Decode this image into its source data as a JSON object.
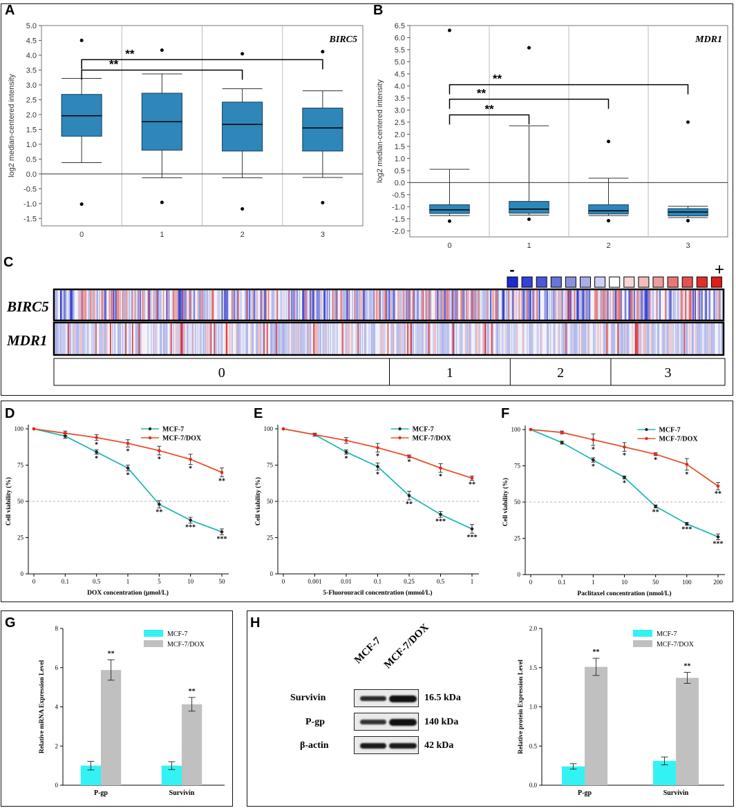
{
  "colors": {
    "box": "#2e86b9",
    "boxEdge": "#173f5c",
    "cyanLine": "#1fb8b0",
    "redLine": "#e8502a",
    "redDot": "#e8231c",
    "mcf7Bar": "#33f2f4",
    "doxBar": "#c0c0c0",
    "heatBlue": "#2233cc",
    "heatRed": "#e3231b"
  },
  "panels": {
    "A": {
      "label": "A"
    },
    "B": {
      "label": "B"
    },
    "C": {
      "label": "C"
    },
    "D": {
      "label": "D"
    },
    "E": {
      "label": "E"
    },
    "F": {
      "label": "F"
    },
    "G": {
      "label": "G"
    },
    "H": {
      "label": "H"
    }
  },
  "chart_data": [
    {
      "id": "A",
      "type": "box",
      "title": "BIRC5",
      "ylabel": "log2 median-centered intensity",
      "ylim": [
        -1.75,
        5.0
      ],
      "yticks": [
        -1.5,
        -1.0,
        -0.5,
        0.0,
        0.5,
        1.0,
        1.5,
        2.0,
        2.5,
        3.0,
        3.5,
        4.0,
        4.5,
        5.0
      ],
      "categories": [
        "0",
        "1",
        "2",
        "3"
      ],
      "boxes": [
        {
          "whiskerLow": 0.38,
          "q1": 1.27,
          "median": 1.96,
          "q3": 2.68,
          "whiskerHigh": 3.22,
          "outliers": [
            4.5,
            -1.02
          ]
        },
        {
          "whiskerLow": -0.13,
          "q1": 0.8,
          "median": 1.76,
          "q3": 2.72,
          "whiskerHigh": 3.37,
          "outliers": [
            4.17,
            -0.96
          ]
        },
        {
          "whiskerLow": -0.13,
          "q1": 0.77,
          "median": 1.67,
          "q3": 2.42,
          "whiskerHigh": 2.87,
          "outliers": [
            4.05,
            -1.18
          ]
        },
        {
          "whiskerLow": -0.12,
          "q1": 0.77,
          "median": 1.55,
          "q3": 2.22,
          "whiskerHigh": 2.8,
          "outliers": [
            4.12,
            -0.97
          ]
        }
      ],
      "brackets": [
        {
          "from": 0,
          "to": 2,
          "y": 3.5,
          "label": "**"
        },
        {
          "from": 0,
          "to": 3,
          "y": 3.85,
          "label": "**"
        }
      ]
    },
    {
      "id": "B",
      "type": "box",
      "title": "MDR1",
      "ylabel": "log2 median-centered intensity",
      "ylim": [
        -2.25,
        6.5
      ],
      "yticks": [
        -2.0,
        -1.5,
        -1.0,
        -0.5,
        0.0,
        0.5,
        1.0,
        1.5,
        2.0,
        2.5,
        3.0,
        3.5,
        4.0,
        4.5,
        5.0,
        5.5,
        6.0,
        6.5
      ],
      "categories": [
        "0",
        "1",
        "2",
        "3"
      ],
      "boxes": [
        {
          "whiskerLow": -1.37,
          "q1": -1.28,
          "median": -1.13,
          "q3": -0.92,
          "whiskerHigh": 0.55,
          "outliers": [
            6.3,
            -1.6
          ]
        },
        {
          "whiskerLow": -1.35,
          "q1": -1.27,
          "median": -1.1,
          "q3": -0.78,
          "whiskerHigh": 2.35,
          "outliers": [
            5.58,
            -1.52
          ]
        },
        {
          "whiskerLow": -1.37,
          "q1": -1.3,
          "median": -1.17,
          "q3": -0.92,
          "whiskerHigh": 0.18,
          "outliers": [
            1.7,
            -1.58
          ]
        },
        {
          "whiskerLow": -1.45,
          "q1": -1.38,
          "median": -1.22,
          "q3": -1.08,
          "whiskerHigh": -0.98,
          "outliers": [
            2.5,
            -1.58
          ]
        }
      ],
      "brackets": [
        {
          "from": 0,
          "to": 1,
          "y": 2.8,
          "label": "**"
        },
        {
          "from": 0,
          "to": 2,
          "y": 3.45,
          "label": "**"
        },
        {
          "from": 0,
          "to": 3,
          "y": 4.05,
          "label": "**"
        }
      ]
    },
    {
      "id": "C",
      "type": "heatmap",
      "rows": [
        "BIRC5",
        "MDR1"
      ],
      "groups": [
        "0",
        "1",
        "2",
        "3"
      ],
      "groupSpan": [
        0.5,
        0.18,
        0.15,
        0.17
      ],
      "legend": {
        "minus": "-",
        "plus": "+"
      }
    },
    {
      "id": "D",
      "type": "line",
      "xlabel": "DOX concentration (μmol/L)",
      "ylabel": "Cell viability (%)",
      "categories": [
        "0",
        "0.1",
        "0.5",
        "1",
        "5",
        "10",
        "50"
      ],
      "yticks": [
        0,
        25,
        50,
        75,
        100
      ],
      "ylim": [
        0,
        100
      ],
      "refline": 50,
      "series": [
        {
          "name": "MCF-7",
          "values": [
            100,
            95,
            84,
            73,
            48,
            37,
            29
          ],
          "errors": [
            0,
            1.5,
            1.5,
            2,
            2.5,
            2,
            2
          ],
          "sig": [
            "",
            "",
            "*",
            "*",
            "**",
            "***",
            "***"
          ]
        },
        {
          "name": "MCF-7/DOX",
          "values": [
            100,
            97,
            94,
            90,
            85,
            79,
            70
          ],
          "errors": [
            0,
            1.5,
            2,
            2.5,
            3,
            3.5,
            3
          ],
          "sig": [
            "",
            "",
            "*",
            "*",
            "*",
            "*",
            "**"
          ]
        }
      ]
    },
    {
      "id": "E",
      "type": "line",
      "xlabel": "5-Fluorouracil concentration (mmol/L)",
      "ylabel": "Cell viability (%)",
      "categories": [
        "0",
        "0.001",
        "0.01",
        "0.1",
        "0.25",
        "0.5",
        "1"
      ],
      "yticks": [
        0,
        25,
        50,
        75,
        100
      ],
      "ylim": [
        0,
        100
      ],
      "refline": 50,
      "series": [
        {
          "name": "MCF-7",
          "values": [
            100,
            96,
            84,
            74,
            54,
            41,
            31
          ],
          "errors": [
            0,
            1,
            1.5,
            2.5,
            3,
            2,
            3
          ],
          "sig": [
            "",
            "",
            "*",
            "*",
            "**",
            "***",
            "***"
          ]
        },
        {
          "name": "MCF-7/DOX",
          "values": [
            100,
            96,
            92,
            87,
            81,
            73,
            66
          ],
          "errors": [
            0,
            1,
            2,
            3,
            1,
            3,
            1.5
          ],
          "sig": [
            "",
            "",
            "",
            "*",
            "*",
            "*",
            "**"
          ]
        }
      ]
    },
    {
      "id": "F",
      "type": "line",
      "xlabel": "Paclitaxel concentration (nmol/L)",
      "ylabel": "Cell viability (%)",
      "categories": [
        "0",
        "0.1",
        "1",
        "10",
        "50",
        "100",
        "200"
      ],
      "yticks": [
        0,
        25,
        50,
        75,
        100
      ],
      "ylim": [
        0,
        100
      ],
      "refline": 50,
      "series": [
        {
          "name": "MCF-7",
          "values": [
            100,
            91,
            79,
            67,
            47,
            35,
            26
          ],
          "errors": [
            0,
            1,
            1.5,
            1,
            1,
            1,
            2
          ],
          "sig": [
            "",
            "",
            "*",
            "*",
            "**",
            "***",
            "***"
          ]
        },
        {
          "name": "MCF-7/DOX",
          "values": [
            100,
            98,
            93,
            88,
            83,
            76,
            61
          ],
          "errors": [
            0,
            1,
            4,
            3,
            1,
            4,
            2.5
          ],
          "sig": [
            "",
            "",
            "*",
            "*",
            "*",
            "*",
            "**"
          ]
        }
      ]
    },
    {
      "id": "G",
      "type": "bar",
      "ylabel": "Relative mRNA Expression Level",
      "categories": [
        "P-gp",
        "Survivin"
      ],
      "yticks": [
        0,
        2,
        4,
        6,
        8
      ],
      "ylim": [
        0,
        8
      ],
      "series": [
        {
          "name": "MCF-7",
          "values": [
            1.0,
            1.0
          ],
          "errors": [
            0.22,
            0.2
          ],
          "sig": [
            "",
            ""
          ]
        },
        {
          "name": "MCF-7/DOX",
          "values": [
            5.88,
            4.13
          ],
          "errors": [
            0.52,
            0.35
          ],
          "sig": [
            "**",
            "**"
          ]
        }
      ]
    },
    {
      "id": "H",
      "type": "bar",
      "ylabel": "Relative protein Expression Level",
      "categories": [
        "P-gp",
        "Survivin"
      ],
      "yticks": [
        0.0,
        0.5,
        1.0,
        1.5,
        2.0
      ],
      "ylim": [
        0,
        2.0
      ],
      "series": [
        {
          "name": "MCF-7",
          "values": [
            0.24,
            0.31
          ],
          "errors": [
            0.035,
            0.05
          ],
          "sig": [
            "",
            ""
          ]
        },
        {
          "name": "MCF-7/DOX",
          "values": [
            1.51,
            1.37
          ],
          "errors": [
            0.11,
            0.07
          ],
          "sig": [
            "**",
            "**"
          ]
        }
      ]
    }
  ],
  "blot": {
    "lanes": [
      "MCF-7",
      "MCF-7/DOX"
    ],
    "rows": [
      {
        "protein": "Survivin",
        "size": "16.5 kDa"
      },
      {
        "protein": "P-gp",
        "size": "140 kDa"
      },
      {
        "protein": "β-actin",
        "size": "42 kDa"
      }
    ]
  }
}
